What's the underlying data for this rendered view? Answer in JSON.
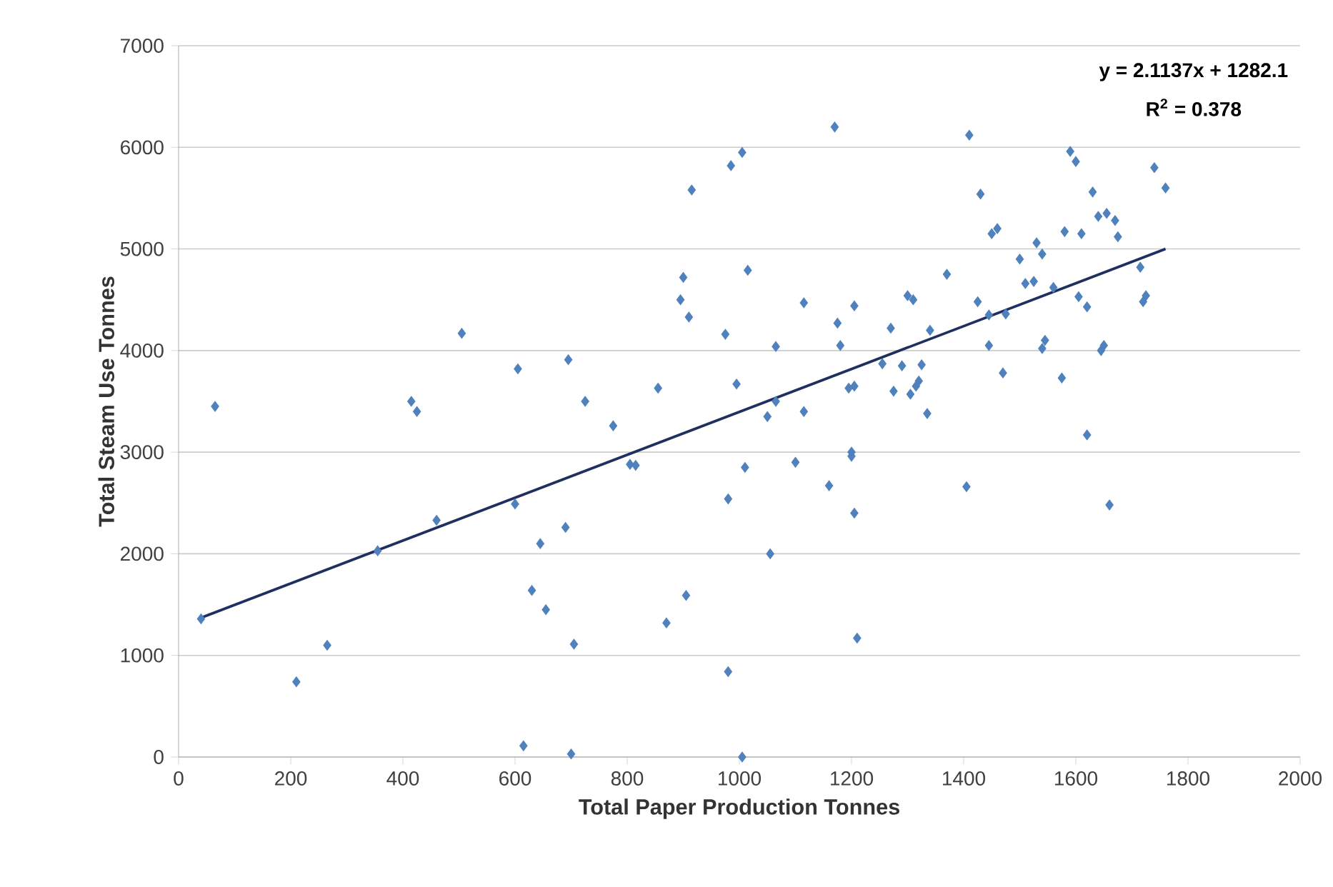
{
  "chart_data": {
    "type": "scatter",
    "xlabel": "Total Paper Production Tonnes",
    "ylabel": "Total Steam Use Tonnes",
    "xlim": [
      0,
      2000
    ],
    "xticks": [
      0,
      200,
      400,
      600,
      800,
      1000,
      1200,
      1400,
      1600,
      1800,
      2000
    ],
    "ylim": [
      0,
      7000
    ],
    "yticks": [
      0,
      1000,
      2000,
      3000,
      4000,
      5000,
      6000,
      7000
    ],
    "grid": "y",
    "marker": "diamond",
    "annotations": [
      "y = 2.1137x + 1282.1",
      "R$^{2}$ = 0.378"
    ],
    "series": [
      {
        "color": "#4f81bd",
        "x": [
          40,
          65,
          210,
          265,
          355,
          415,
          425,
          460,
          505,
          600,
          605,
          615,
          630,
          645,
          655,
          690,
          695,
          700,
          705,
          725,
          775,
          805,
          815,
          855,
          870,
          895,
          900,
          905,
          910,
          915,
          975,
          980,
          980,
          985,
          995,
          1005,
          1005,
          1010,
          1015,
          1050,
          1055,
          1065,
          1065,
          1100,
          1115,
          1115,
          1160,
          1170,
          1175,
          1180,
          1195,
          1200,
          1200,
          1205,
          1205,
          1205,
          1210,
          1255,
          1270,
          1275,
          1290,
          1300,
          1310,
          1305,
          1315,
          1320,
          1325,
          1335,
          1340,
          1370,
          1405,
          1410,
          1425,
          1430,
          1445,
          1445,
          1450,
          1460,
          1470,
          1475,
          1500,
          1510,
          1525,
          1530,
          1540,
          1545,
          1540,
          1560,
          1575,
          1580,
          1590,
          1600,
          1605,
          1610,
          1620,
          1620,
          1630,
          1640,
          1645,
          1650,
          1655,
          1660,
          1670,
          1675,
          1715,
          1720,
          1725,
          1740,
          1760
        ],
        "values": [
          1360,
          3450,
          740,
          1100,
          2030,
          3500,
          3400,
          2330,
          4170,
          2490,
          3820,
          110,
          1640,
          2100,
          1450,
          2260,
          3910,
          30,
          1110,
          3500,
          3260,
          2880,
          2870,
          3630,
          1320,
          4500,
          4720,
          1590,
          4330,
          5580,
          4160,
          840,
          2540,
          5820,
          3670,
          5950,
          0,
          2850,
          4790,
          3350,
          2000,
          4040,
          3500,
          2900,
          4470,
          3400,
          2670,
          6200,
          4270,
          4050,
          3630,
          3000,
          2960,
          3650,
          4440,
          2400,
          1170,
          3870,
          4220,
          3600,
          3850,
          4540,
          4500,
          3570,
          3650,
          3700,
          3860,
          3380,
          4200,
          4750,
          2660,
          6120,
          4480,
          5540,
          4050,
          4350,
          5150,
          5200,
          3780,
          4360,
          4900,
          4660,
          4680,
          5060,
          4950,
          4100,
          4020,
          4620,
          3730,
          5170,
          5960,
          5860,
          4530,
          5150,
          4430,
          3170,
          5560,
          5320,
          4000,
          4050,
          5350,
          2480,
          5280,
          5120,
          4820,
          4480,
          4540,
          5800,
          5600
        ]
      },
      {
        "type": "line",
        "color": "#1f2f5f",
        "marker": "none",
        "x": [
          40,
          1760
        ],
        "values": [
          1370,
          5000
        ]
      }
    ]
  }
}
